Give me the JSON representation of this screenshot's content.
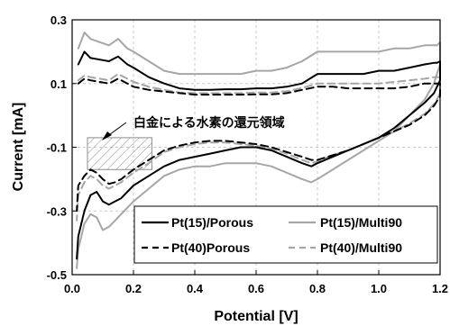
{
  "chart_data": {
    "type": "line",
    "xlabel": "Potential [V]",
    "ylabel": "Current [mA]",
    "xlim": [
      0.0,
      1.2
    ],
    "ylim": [
      -0.5,
      0.3
    ],
    "xticks": [
      "0.0",
      "0.2",
      "0.4",
      "0.6",
      "0.8",
      "1.0",
      "1.2"
    ],
    "yticks": [
      "0.3",
      "0.1",
      "-0.1",
      "-0.3",
      "-0.5"
    ],
    "grid": true,
    "legend_position": "bottom-right",
    "annotation": "白金による水素の還元領域",
    "hatched_region": {
      "x": [
        0.05,
        0.26
      ],
      "y": [
        -0.17,
        -0.07
      ]
    },
    "series": [
      {
        "name": "Pt(15)/Porous",
        "color": "#000000",
        "dash": "solid",
        "x": [
          0.02,
          0.04,
          0.06,
          0.09,
          0.12,
          0.15,
          0.18,
          0.2,
          0.25,
          0.3,
          0.35,
          0.4,
          0.45,
          0.5,
          0.55,
          0.6,
          0.65,
          0.7,
          0.75,
          0.8,
          0.85,
          0.9,
          0.95,
          1.0,
          1.05,
          1.1,
          1.15,
          1.18,
          1.19,
          1.2,
          1.2,
          1.19,
          1.18,
          1.15,
          1.1,
          1.05,
          1.0,
          0.95,
          0.9,
          0.85,
          0.8,
          0.78,
          0.75,
          0.7,
          0.65,
          0.6,
          0.55,
          0.5,
          0.45,
          0.4,
          0.35,
          0.3,
          0.25,
          0.2,
          0.16,
          0.14,
          0.12,
          0.1,
          0.08,
          0.06,
          0.04,
          0.02,
          0.015
        ],
        "y": [
          0.16,
          0.2,
          0.18,
          0.175,
          0.17,
          0.185,
          0.16,
          0.15,
          0.12,
          0.1,
          0.085,
          0.08,
          0.08,
          0.082,
          0.082,
          0.085,
          0.085,
          0.09,
          0.1,
          0.13,
          0.13,
          0.13,
          0.13,
          0.14,
          0.14,
          0.15,
          0.16,
          0.165,
          0.165,
          0.17,
          0.11,
          0.09,
          0.07,
          0.04,
          0.0,
          -0.04,
          -0.07,
          -0.09,
          -0.11,
          -0.13,
          -0.15,
          -0.16,
          -0.15,
          -0.13,
          -0.11,
          -0.1,
          -0.1,
          -0.11,
          -0.12,
          -0.13,
          -0.14,
          -0.16,
          -0.19,
          -0.22,
          -0.26,
          -0.27,
          -0.28,
          -0.27,
          -0.24,
          -0.25,
          -0.3,
          -0.38,
          -0.45
        ]
      },
      {
        "name": "Pt(15)/Multi90",
        "color": "#a6a6a6",
        "dash": "solid",
        "x": [
          0.02,
          0.04,
          0.06,
          0.09,
          0.12,
          0.15,
          0.18,
          0.2,
          0.25,
          0.3,
          0.35,
          0.4,
          0.45,
          0.5,
          0.55,
          0.6,
          0.65,
          0.7,
          0.75,
          0.8,
          0.85,
          0.9,
          0.95,
          1.0,
          1.05,
          1.1,
          1.15,
          1.18,
          1.19,
          1.2,
          1.2,
          1.19,
          1.18,
          1.15,
          1.1,
          1.05,
          1.0,
          0.95,
          0.9,
          0.85,
          0.8,
          0.78,
          0.75,
          0.7,
          0.65,
          0.6,
          0.55,
          0.5,
          0.45,
          0.4,
          0.35,
          0.3,
          0.25,
          0.2,
          0.16,
          0.14,
          0.12,
          0.1,
          0.08,
          0.06,
          0.04,
          0.02,
          0.015
        ],
        "y": [
          0.21,
          0.26,
          0.24,
          0.23,
          0.22,
          0.24,
          0.21,
          0.2,
          0.17,
          0.14,
          0.13,
          0.13,
          0.13,
          0.13,
          0.13,
          0.14,
          0.14,
          0.15,
          0.17,
          0.2,
          0.2,
          0.2,
          0.2,
          0.2,
          0.21,
          0.21,
          0.22,
          0.22,
          0.22,
          0.23,
          0.16,
          0.13,
          0.1,
          0.05,
          0.0,
          -0.05,
          -0.08,
          -0.11,
          -0.14,
          -0.17,
          -0.2,
          -0.21,
          -0.2,
          -0.18,
          -0.16,
          -0.15,
          -0.15,
          -0.15,
          -0.16,
          -0.16,
          -0.17,
          -0.19,
          -0.23,
          -0.27,
          -0.31,
          -0.33,
          -0.35,
          -0.36,
          -0.32,
          -0.31,
          -0.34,
          -0.42,
          -0.48
        ]
      },
      {
        "name": "Pt(40)Porous",
        "color": "#000000",
        "dash": "dashed",
        "x": [
          0.02,
          0.04,
          0.06,
          0.09,
          0.12,
          0.15,
          0.18,
          0.2,
          0.25,
          0.3,
          0.35,
          0.4,
          0.45,
          0.5,
          0.55,
          0.6,
          0.65,
          0.7,
          0.75,
          0.8,
          0.85,
          0.9,
          0.95,
          1.0,
          1.05,
          1.1,
          1.15,
          1.18,
          1.19,
          1.2,
          1.2,
          1.19,
          1.18,
          1.15,
          1.1,
          1.05,
          1.0,
          0.95,
          0.9,
          0.85,
          0.8,
          0.78,
          0.75,
          0.7,
          0.65,
          0.6,
          0.55,
          0.5,
          0.45,
          0.4,
          0.35,
          0.3,
          0.25,
          0.2,
          0.16,
          0.14,
          0.12,
          0.1,
          0.08,
          0.06,
          0.04,
          0.02,
          0.015
        ],
        "y": [
          0.1,
          0.115,
          0.11,
          0.105,
          0.1,
          0.115,
          0.1,
          0.09,
          0.08,
          0.075,
          0.07,
          0.065,
          0.065,
          0.065,
          0.065,
          0.066,
          0.066,
          0.07,
          0.08,
          0.09,
          0.09,
          0.085,
          0.085,
          0.085,
          0.085,
          0.09,
          0.1,
          0.1,
          0.1,
          0.1,
          0.06,
          0.045,
          0.03,
          0.0,
          -0.03,
          -0.05,
          -0.07,
          -0.09,
          -0.11,
          -0.125,
          -0.14,
          -0.14,
          -0.13,
          -0.115,
          -0.1,
          -0.09,
          -0.085,
          -0.08,
          -0.08,
          -0.085,
          -0.095,
          -0.11,
          -0.14,
          -0.17,
          -0.2,
          -0.21,
          -0.215,
          -0.2,
          -0.18,
          -0.17,
          -0.19,
          -0.22,
          -0.3
        ]
      },
      {
        "name": "Pt(40)/Multi90",
        "color": "#a6a6a6",
        "dash": "dashed",
        "x": [
          0.02,
          0.04,
          0.06,
          0.09,
          0.12,
          0.15,
          0.18,
          0.2,
          0.25,
          0.3,
          0.35,
          0.4,
          0.45,
          0.5,
          0.55,
          0.6,
          0.65,
          0.7,
          0.75,
          0.8,
          0.85,
          0.9,
          0.95,
          1.0,
          1.05,
          1.1,
          1.15,
          1.18,
          1.19,
          1.2,
          1.2,
          1.19,
          1.18,
          1.15,
          1.1,
          1.05,
          1.0,
          0.95,
          0.9,
          0.85,
          0.8,
          0.78,
          0.75,
          0.7,
          0.65,
          0.6,
          0.55,
          0.5,
          0.45,
          0.4,
          0.35,
          0.3,
          0.25,
          0.2,
          0.16,
          0.14,
          0.12,
          0.1,
          0.08,
          0.06,
          0.04,
          0.02,
          0.015
        ],
        "y": [
          0.11,
          0.125,
          0.12,
          0.115,
          0.11,
          0.13,
          0.115,
          0.105,
          0.09,
          0.08,
          0.072,
          0.07,
          0.07,
          0.07,
          0.07,
          0.072,
          0.072,
          0.076,
          0.086,
          0.1,
          0.1,
          0.1,
          0.1,
          0.1,
          0.105,
          0.11,
          0.115,
          0.12,
          0.12,
          0.12,
          0.07,
          0.05,
          0.035,
          0.005,
          -0.025,
          -0.05,
          -0.07,
          -0.09,
          -0.11,
          -0.125,
          -0.145,
          -0.15,
          -0.14,
          -0.12,
          -0.105,
          -0.095,
          -0.09,
          -0.085,
          -0.085,
          -0.09,
          -0.1,
          -0.115,
          -0.15,
          -0.18,
          -0.21,
          -0.22,
          -0.23,
          -0.22,
          -0.2,
          -0.19,
          -0.21,
          -0.25,
          -0.33
        ]
      }
    ]
  }
}
